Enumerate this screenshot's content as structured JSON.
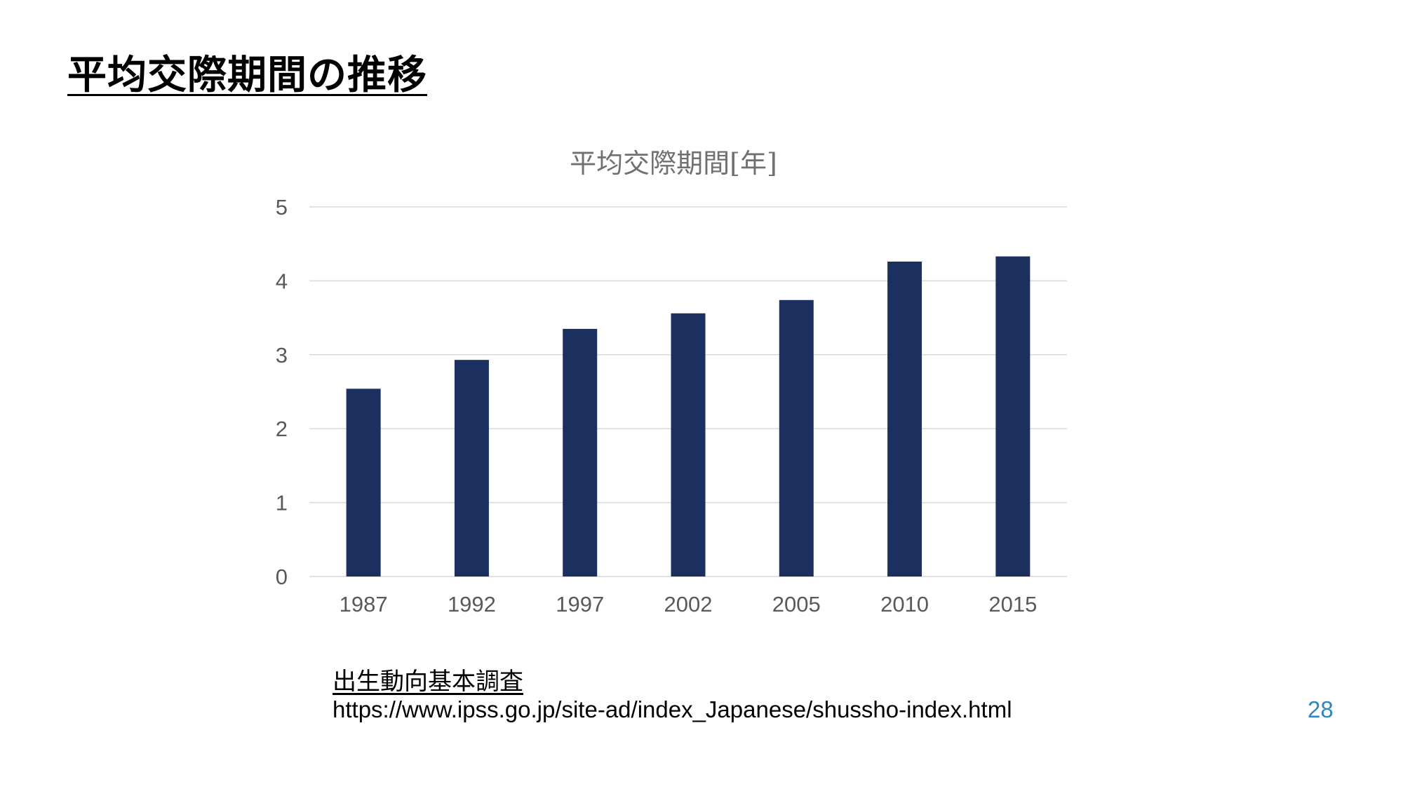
{
  "slide": {
    "title": "平均交際期間の推移",
    "page_number": "28"
  },
  "source": {
    "title": "出生動向基本調査",
    "url": "https://www.ipss.go.jp/site-ad/index_Japanese/shussho-index.html"
  },
  "colors": {
    "bar": "#1b305e",
    "page_number": "#2e86c1"
  },
  "chart_data": {
    "type": "bar",
    "title": "平均交際期間[年]",
    "xlabel": "",
    "ylabel": "",
    "categories": [
      "1987",
      "1992",
      "1997",
      "2002",
      "2005",
      "2010",
      "2015"
    ],
    "values": [
      2.54,
      2.93,
      3.35,
      3.56,
      3.74,
      4.26,
      4.33
    ],
    "ylim": [
      0,
      5
    ],
    "yticks": [
      "0",
      "1",
      "2",
      "3",
      "4",
      "5"
    ],
    "grid": true,
    "legend": "none"
  }
}
